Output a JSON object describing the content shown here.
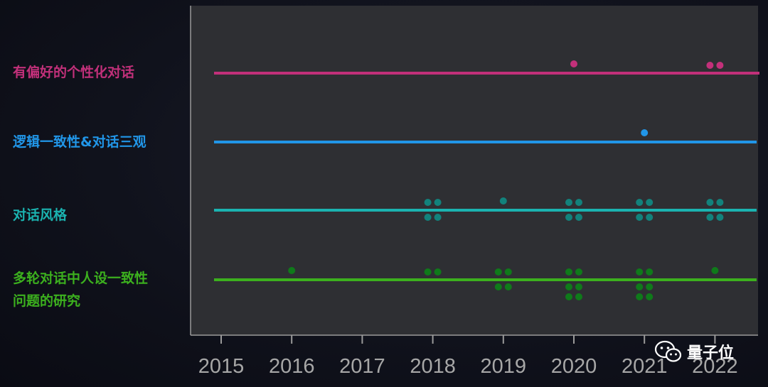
{
  "chart_data": {
    "type": "scatter",
    "x_ticks": [
      "2015",
      "2016",
      "2017",
      "2018",
      "2019",
      "2020",
      "2021",
      "2022"
    ],
    "xlim": [
      2014.6,
      2022.6
    ],
    "series": [
      {
        "name": "有偏好的个性化对话",
        "name_lines": [
          "有偏好的个性化对话"
        ],
        "color": "#c2307a",
        "counts": {
          "2015": 0,
          "2016": 0,
          "2017": 0,
          "2018": 0,
          "2019": 0,
          "2020": 1,
          "2021": 0,
          "2022": 2
        }
      },
      {
        "name": "逻辑一致性&对话三观",
        "name_lines": [
          "逻辑一致性&对话三观"
        ],
        "color": "#2196e8",
        "counts": {
          "2015": 0,
          "2016": 0,
          "2017": 0,
          "2018": 0,
          "2019": 0,
          "2020": 0,
          "2021": 1,
          "2022": 0
        }
      },
      {
        "name": "对话风格",
        "name_lines": [
          "对话风格"
        ],
        "color": "#1bb3b0",
        "point_color": "#12827c",
        "counts": {
          "2015": 0,
          "2016": 0,
          "2017": 0,
          "2018": 4,
          "2019": 1,
          "2020": 4,
          "2021": 4,
          "2022": 4
        }
      },
      {
        "name": "多轮对话中人设一致性问题的研究",
        "name_lines": [
          "多轮对话中人设一致性",
          "问题的研究"
        ],
        "color": "#3cb01e",
        "point_color": "#0f7a1a",
        "counts": {
          "2015": 0,
          "2016": 1,
          "2017": 0,
          "2018": 2,
          "2019": 4,
          "2020": 6,
          "2021": 6,
          "2022": 1
        }
      }
    ],
    "background": "#2e2f33",
    "grid": false
  },
  "watermark": {
    "text": "量子位"
  }
}
